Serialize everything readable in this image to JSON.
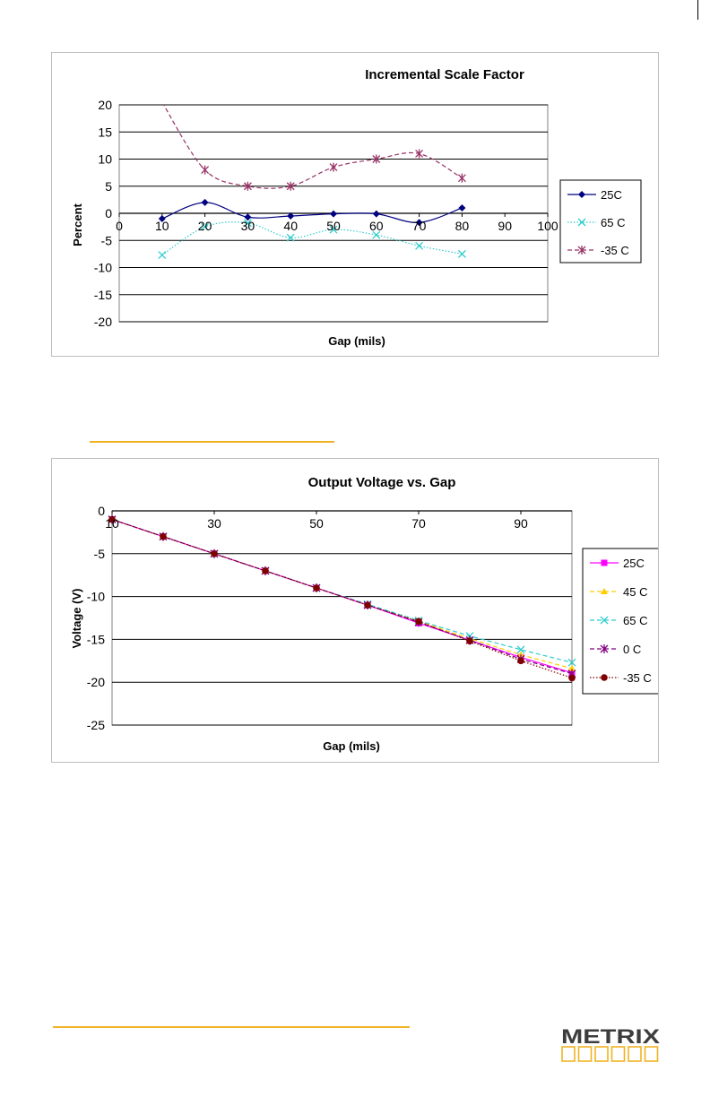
{
  "chart_data": [
    {
      "type": "line",
      "title": "Incremental Scale Factor",
      "xlabel": "Gap (mils)",
      "ylabel": "Percent",
      "xlim": [
        0,
        100
      ],
      "ylim": [
        -20,
        20
      ],
      "x_ticks": [
        "0",
        "10",
        "20",
        "30",
        "40",
        "50",
        "60",
        "70",
        "80",
        "90",
        "100"
      ],
      "y_ticks": [
        "20",
        "15",
        "10",
        "5",
        "0",
        "-5",
        "-10",
        "-15",
        "-20"
      ],
      "grid": true,
      "legend": "right",
      "x": [
        10,
        20,
        30,
        40,
        50,
        60,
        70,
        80
      ],
      "series": [
        {
          "name": "25C",
          "values": [
            -1,
            2,
            -0.7,
            -0.5,
            -0.1,
            -0.1,
            -1.7,
            1
          ],
          "color": "#000080",
          "marker": "diamond",
          "dash": "solid"
        },
        {
          "name": "65 C",
          "values": [
            -7.7,
            -2.5,
            -1.8,
            -4.5,
            -3,
            -4,
            -6,
            -7.5
          ],
          "color": "#33cccc",
          "marker": "x",
          "dash": "dotted"
        },
        {
          "name": "-35 C",
          "values": [
            20.5,
            8,
            5,
            5,
            8.5,
            10,
            11,
            6.5
          ],
          "color": "#993366",
          "marker": "star",
          "dash": "dashed"
        }
      ]
    },
    {
      "type": "line",
      "title": "Output  Voltage vs. Gap",
      "xlabel": "Gap (mils)",
      "ylabel": "Voltage  (V)",
      "xlim": [
        10,
        100
      ],
      "ylim": [
        -25,
        0
      ],
      "x_ticks": [
        "10",
        "30",
        "50",
        "70",
        "90"
      ],
      "y_ticks": [
        "0",
        "-5",
        "-10",
        "-15",
        "-20",
        "-25"
      ],
      "grid": true,
      "legend": "right",
      "x": [
        10,
        20,
        30,
        40,
        50,
        60,
        70,
        80,
        90,
        100
      ],
      "series": [
        {
          "name": "25C",
          "values": [
            -1,
            -3,
            -5,
            -7,
            -9,
            -11,
            -13.1,
            -15.1,
            -17.1,
            -18.9
          ],
          "color": "#ff00ff",
          "marker": "square",
          "dash": "solid"
        },
        {
          "name": "45 C",
          "values": [
            -1,
            -3,
            -5,
            -7,
            -9,
            -11,
            -12.9,
            -14.9,
            -16.8,
            -18.4
          ],
          "color": "#ffcc00",
          "marker": "triangle",
          "dash": "dashed"
        },
        {
          "name": "65 C",
          "values": [
            -1,
            -3,
            -5,
            -7,
            -9,
            -10.9,
            -12.8,
            -14.6,
            -16.2,
            -17.7
          ],
          "color": "#33cccc",
          "marker": "x",
          "dash": "dashed"
        },
        {
          "name": "0 C",
          "values": [
            -1,
            -3,
            -5,
            -7,
            -9,
            -11,
            -13,
            -15.1,
            -17.3,
            -19
          ],
          "color": "#800080",
          "marker": "star",
          "dash": "dashed"
        },
        {
          "name": "-35 C",
          "values": [
            -1,
            -3,
            -5,
            -7,
            -9,
            -11,
            -12.9,
            -15.2,
            -17.5,
            -19.5
          ],
          "color": "#800000",
          "marker": "circle",
          "dash": "dotted"
        }
      ]
    }
  ],
  "logo": {
    "text": "METRIX",
    "color": "#3d3d3d",
    "accent": "#f0b323"
  }
}
